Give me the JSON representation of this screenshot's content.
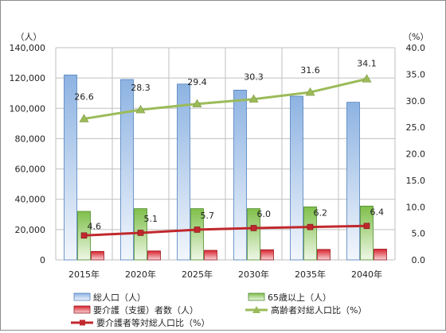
{
  "chart_data": {
    "type": "bar",
    "categories": [
      "2015年",
      "2020年",
      "2025年",
      "2030年",
      "2035年",
      "2040年"
    ],
    "left_axis": {
      "unit": "（人）",
      "ylim": [
        0,
        140000
      ],
      "ticks": [
        "0",
        "20,000",
        "40,000",
        "60,000",
        "80,000",
        "100,000",
        "120,000",
        "140,000"
      ]
    },
    "right_axis": {
      "unit": "（%）",
      "ylim": [
        0,
        40
      ],
      "ticks": [
        "0.0",
        "5.0",
        "10.0",
        "15.0",
        "20.0",
        "25.0",
        "30.0",
        "35.0",
        "40.0"
      ]
    },
    "series": [
      {
        "name": "総人口（人）",
        "kind": "bar",
        "axis": "left",
        "color": "#8db3e2",
        "values": [
          122000,
          119000,
          116000,
          112000,
          108000,
          104000
        ]
      },
      {
        "name": "65歳以上（人）",
        "kind": "bar",
        "axis": "left",
        "color": "#8cc75a",
        "values": [
          32000,
          33800,
          33800,
          33800,
          35000,
          35500
        ]
      },
      {
        "name": "要介護（支援）者数（人）",
        "kind": "bar",
        "axis": "left",
        "color": "#e0303a",
        "values": [
          5600,
          5900,
          6300,
          6700,
          6900,
          7100
        ]
      },
      {
        "name": "高齢者対総人口比（%）",
        "kind": "line",
        "axis": "right",
        "color": "#9bbb59",
        "marker": "triangle",
        "values": [
          26.6,
          28.3,
          29.4,
          30.3,
          31.6,
          34.1
        ],
        "labels": [
          "26.6",
          "28.3",
          "29.4",
          "30.3",
          "31.6",
          "34.1"
        ]
      },
      {
        "name": "要介護者等対総人口比（%）",
        "kind": "line",
        "axis": "right",
        "color": "#c0282d",
        "marker": "square",
        "values": [
          4.6,
          5.1,
          5.7,
          6.0,
          6.2,
          6.4
        ],
        "labels": [
          "4.6",
          "5.1",
          "5.7",
          "6.0",
          "6.2",
          "6.4"
        ]
      }
    ],
    "legend_position": "bottom",
    "grid": true
  }
}
